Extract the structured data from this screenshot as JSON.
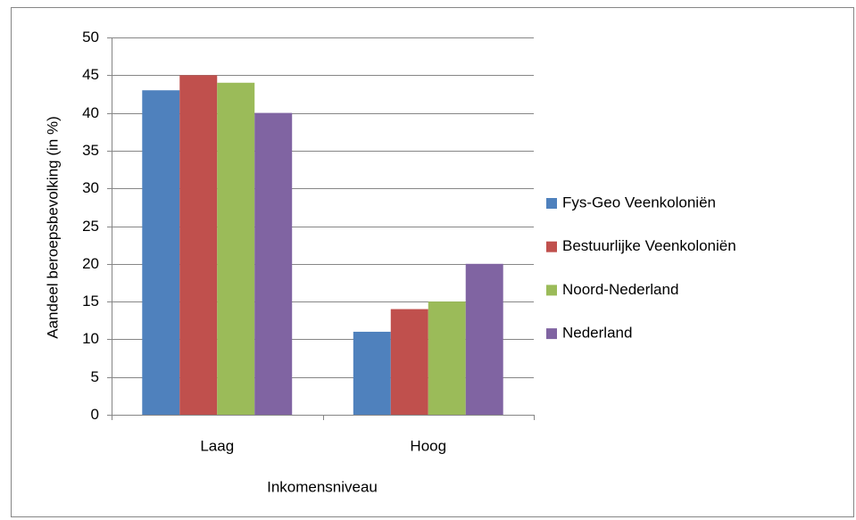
{
  "chart_data": {
    "type": "bar",
    "x_label": "Inkomensniveau",
    "y_label": "Aandeel beroepsbevolking (in %)",
    "categories": [
      "Laag",
      "Hoog"
    ],
    "series": [
      {
        "name": "Fys-Geo Veenkoloniën",
        "color": "#4f81bd",
        "values": [
          43,
          11
        ]
      },
      {
        "name": "Bestuurlijke Veenkoloniën",
        "color": "#c0504d",
        "values": [
          45,
          14
        ]
      },
      {
        "name": "Noord-Nederland",
        "color": "#9bbb59",
        "values": [
          44,
          15
        ]
      },
      {
        "name": "Nederland",
        "color": "#8064a2",
        "values": [
          40,
          20
        ]
      }
    ],
    "ylim": [
      0,
      50
    ],
    "yticks": [
      0,
      5,
      10,
      15,
      20,
      25,
      30,
      35,
      40,
      45,
      50
    ],
    "grid": true,
    "legend": "right"
  }
}
